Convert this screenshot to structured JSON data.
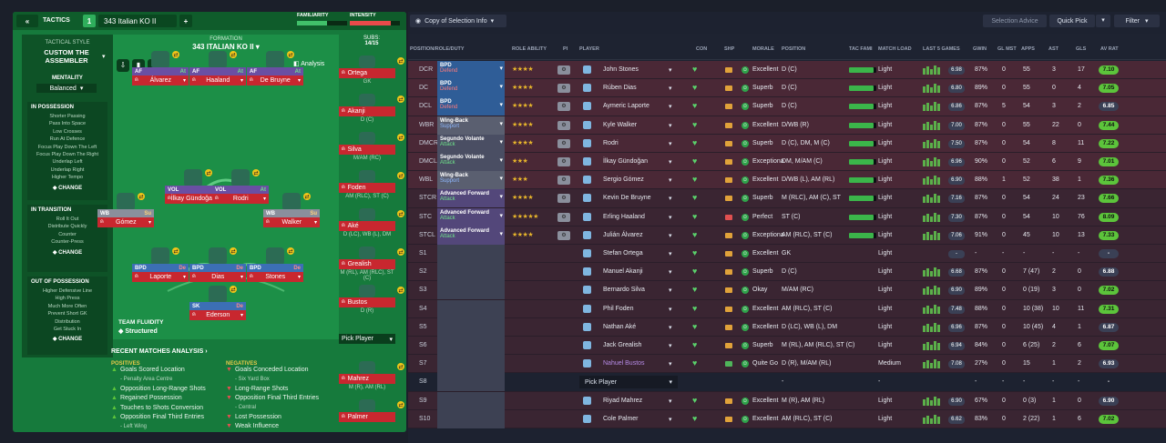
{
  "tactics": {
    "label": "TACTICS",
    "slot": "1",
    "name": "343 Italian KO II",
    "familiarity_label": "FAMILIARITY",
    "intensity_label": "INTENSITY",
    "style_title": "TACTICAL STYLE",
    "style_name": "CUSTOM THE ASSEMBLER",
    "mentality_label": "MENTALITY",
    "mentality_value": "Balanced",
    "in_possession": {
      "title": "IN POSSESSION",
      "items": [
        "Shorter Passing",
        "Pass Into Space",
        "Low Crosses",
        "Run At Defence",
        "Focus Play Down The Left",
        "Focus Play Down The Right",
        "Underlap Left",
        "Underlap Right",
        "Higher Tempo"
      ],
      "change": "CHANGE"
    },
    "in_transition": {
      "title": "IN TRANSITION",
      "items": [
        "Roll It Out",
        "Distribute Quickly",
        "Counter",
        "Counter-Press"
      ],
      "change": "CHANGE"
    },
    "out_of_possession": {
      "title": "OUT OF POSSESSION",
      "items": [
        "Higher Defensive Line",
        "High Press",
        "Much More Often",
        "Prevent Short GK",
        "Distribution",
        "Get Stuck In"
      ],
      "change": "CHANGE"
    },
    "formation_label": "FORMATION",
    "formation_name": "343 ITALIAN KO II",
    "subs_label": "SUBS:",
    "subs_value": "14/15",
    "analysis_btn": "Analysis",
    "team_fluidity_label": "TEAM FLUIDITY",
    "team_fluidity_value": "Structured",
    "pitch_players": [
      {
        "role": "AF",
        "duty": "At",
        "name": "Álvarez"
      },
      {
        "role": "AF",
        "duty": "At",
        "name": "Haaland"
      },
      {
        "role": "AF",
        "duty": "At",
        "name": "De Bruyne"
      },
      {
        "role": "VOL",
        "duty": "At",
        "name": "İlkay Gündoğan"
      },
      {
        "role": "VOL",
        "duty": "At",
        "name": "Rodri"
      },
      {
        "role": "WB",
        "duty": "Su",
        "name": "Gómez"
      },
      {
        "role": "WB",
        "duty": "Su",
        "name": "Walker"
      },
      {
        "role": "BPD",
        "duty": "De",
        "name": "Laporte"
      },
      {
        "role": "BPD",
        "duty": "De",
        "name": "Dias"
      },
      {
        "role": "BPD",
        "duty": "De",
        "name": "Stones"
      },
      {
        "role": "SK",
        "duty": "De",
        "name": "Ederson"
      }
    ],
    "subs": [
      {
        "name": "Ortega",
        "pos": "GK"
      },
      {
        "name": "Akanji",
        "pos": "D (C)"
      },
      {
        "name": "Silva",
        "pos": "M/AM (RC)"
      },
      {
        "name": "Foden",
        "pos": "AM (RLC), ST (C)"
      },
      {
        "name": "Aké",
        "pos": "D (LC), WB (L), DM"
      },
      {
        "name": "Grealish",
        "pos": "M (RL), AM (RLC), ST (C)"
      },
      {
        "name": "Bustos",
        "pos": "D (R)"
      },
      {
        "name": "Pick Player",
        "pos": ""
      },
      {
        "name": "Mahrez",
        "pos": "M (R), AM (RL)"
      },
      {
        "name": "Palmer",
        "pos": ""
      }
    ],
    "analysis": {
      "title": "RECENT MATCHES ANALYSIS",
      "positives_label": "POSITIVES",
      "negatives_label": "NEGATIVES",
      "positives": [
        "Goals Scored Location",
        "- Penalty Area Centre",
        "Opposition Long-Range Shots",
        "Regained Possession",
        "Touches to Shots Conversion",
        "Opposition Final Third Entries",
        "- Left Wing"
      ],
      "negatives": [
        "Goals Conceded Location",
        "- Six Yard Box",
        "Long-Range Shots",
        "Opposition Final Third Entries",
        "- Central",
        "Lost Possession",
        "Weak Influence"
      ]
    }
  },
  "selection": {
    "copy_label": "Copy of Selection Info",
    "advice": "Selection Advice",
    "quick_pick": "Quick Pick",
    "filter": "Filter",
    "columns": [
      "POSITION/ROLE/DUTY",
      "ROLE ABILITY",
      "PI",
      "PLAYER",
      "CON",
      "SHP",
      "MORALE",
      "POSITION",
      "TAC FAMI",
      "MATCH LOAD",
      "LAST 5 GAMES",
      "GWIN",
      "GL MST",
      "APPS",
      "AST",
      "GLS",
      "AV RAT"
    ],
    "rows": [
      {
        "slot": "DCR",
        "role": "BPD",
        "duty": "Defend",
        "stars": "★★★★",
        "player": "John Stones",
        "morale": "Excellent",
        "position": "D (C)",
        "tac": 0.9,
        "load": "Light",
        "form": "6.98",
        "gwin": "87%",
        "glmst": "0",
        "apps": "55",
        "ast": "3",
        "gls": "17",
        "rating": "7.10",
        "rcol": "#5cc43b",
        "shp": "#e0a23a"
      },
      {
        "slot": "DC",
        "role": "BPD",
        "duty": "Defend",
        "stars": "★★★★",
        "player": "Rúben Dias",
        "morale": "Superb",
        "position": "D (C)",
        "tac": 0.9,
        "load": "Light",
        "form": "6.80",
        "gwin": "89%",
        "glmst": "0",
        "apps": "55",
        "ast": "0",
        "gls": "4",
        "rating": "7.05",
        "rcol": "#5cc43b",
        "shp": "#e0a23a"
      },
      {
        "slot": "DCL",
        "role": "BPD",
        "duty": "Defend",
        "stars": "★★★★",
        "player": "Aymeric Laporte",
        "morale": "Superb",
        "position": "D (C)",
        "tac": 0.9,
        "load": "Light",
        "form": "6.86",
        "gwin": "87%",
        "glmst": "5",
        "apps": "54",
        "ast": "3",
        "gls": "2",
        "rating": "6.85",
        "rcol": "#3a4055",
        "shp": "#e0a23a"
      },
      {
        "slot": "WBR",
        "role": "Wing-Back",
        "duty": "Support",
        "stars": "★★★★",
        "player": "Kyle Walker",
        "morale": "Excellent",
        "position": "D/WB (R)",
        "tac": 0.9,
        "load": "Light",
        "form": "7.00",
        "gwin": "87%",
        "glmst": "0",
        "apps": "55",
        "ast": "22",
        "gls": "0",
        "rating": "7.44",
        "rcol": "#5cc43b",
        "shp": "#e0a23a"
      },
      {
        "slot": "DMCR",
        "role": "Segundo Volante",
        "duty": "Attack",
        "stars": "★★★★",
        "player": "Rodri",
        "morale": "Superb",
        "position": "D (C), DM, M (C)",
        "tac": 0.9,
        "load": "Light",
        "form": "7.50",
        "gwin": "87%",
        "glmst": "0",
        "apps": "54",
        "ast": "8",
        "gls": "11",
        "rating": "7.22",
        "rcol": "#5cc43b",
        "shp": "#e0a23a"
      },
      {
        "slot": "DMCL",
        "role": "Segundo Volante",
        "duty": "Attack",
        "stars": "★★★",
        "player": "İlkay Gündoğan",
        "morale": "Exceptiona",
        "position": "DM, M/AM (C)",
        "tac": 0.9,
        "load": "Light",
        "form": "6.96",
        "gwin": "90%",
        "glmst": "0",
        "apps": "52",
        "ast": "6",
        "gls": "9",
        "rating": "7.01",
        "rcol": "#5cc43b",
        "shp": "#e0a23a"
      },
      {
        "slot": "WBL",
        "role": "Wing-Back",
        "duty": "Support",
        "stars": "★★★",
        "player": "Sergio Gómez",
        "morale": "Excellent",
        "position": "D/WB (L), AM (RL)",
        "tac": 0.9,
        "load": "Light",
        "form": "6.90",
        "gwin": "88%",
        "glmst": "1",
        "apps": "52",
        "ast": "38",
        "gls": "1",
        "rating": "7.36",
        "rcol": "#5cc43b",
        "shp": "#e0a23a"
      },
      {
        "slot": "STCR",
        "role": "Advanced Forward",
        "duty": "Attack",
        "stars": "★★★★",
        "player": "Kevin De Bruyne",
        "morale": "Superb",
        "position": "M (RLC), AM (C), ST",
        "tac": 0.9,
        "load": "Light",
        "form": "7.16",
        "gwin": "87%",
        "glmst": "0",
        "apps": "54",
        "ast": "24",
        "gls": "23",
        "rating": "7.66",
        "rcol": "#5cc43b",
        "shp": "#e0a23a"
      },
      {
        "slot": "STC",
        "role": "Advanced Forward",
        "duty": "Attack",
        "stars": "★★★★★",
        "player": "Erling Haaland",
        "morale": "Perfect",
        "position": "ST (C)",
        "tac": 0.9,
        "load": "Light",
        "form": "7.30",
        "gwin": "87%",
        "glmst": "0",
        "apps": "54",
        "ast": "10",
        "gls": "76",
        "rating": "8.09",
        "rcol": "#5cc43b",
        "shp": "#e05050"
      },
      {
        "slot": "STCL",
        "role": "Advanced Forward",
        "duty": "Attack",
        "stars": "★★★★",
        "player": "Julián Álvarez",
        "morale": "Exceptiona",
        "position": "AM (RLC), ST (C)",
        "tac": 0.9,
        "load": "Light",
        "form": "7.06",
        "gwin": "91%",
        "glmst": "0",
        "apps": "45",
        "ast": "10",
        "gls": "13",
        "rating": "7.33",
        "rcol": "#5cc43b",
        "shp": "#e0a23a"
      },
      {
        "slot": "S1",
        "role": "",
        "duty": "",
        "stars": "",
        "player": "Stefan Ortega",
        "morale": "Excellent",
        "position": "GK",
        "tac": 0,
        "load": "Light",
        "form": "-",
        "gwin": "-",
        "glmst": "-",
        "apps": "-",
        "ast": "-",
        "gls": "-",
        "rating": "-",
        "rcol": "#3a4055",
        "shp": "#e0a23a"
      },
      {
        "slot": "S2",
        "role": "",
        "duty": "",
        "stars": "",
        "player": "Manuel Akanji",
        "morale": "Superb",
        "position": "D (C)",
        "tac": 0,
        "load": "Light",
        "form": "6.68",
        "gwin": "87%",
        "glmst": "0",
        "apps": "7 (47)",
        "ast": "2",
        "gls": "0",
        "rating": "6.88",
        "rcol": "#3a4055",
        "shp": "#e0a23a"
      },
      {
        "slot": "S3",
        "role": "",
        "duty": "",
        "stars": "",
        "player": "Bernardo Silva",
        "morale": "Okay",
        "position": "M/AM (RC)",
        "tac": 0,
        "load": "Light",
        "form": "6.90",
        "gwin": "89%",
        "glmst": "0",
        "apps": "0 (19)",
        "ast": "3",
        "gls": "0",
        "rating": "7.02",
        "rcol": "#5cc43b",
        "shp": "#e0a23a"
      },
      {
        "slot": "S4",
        "role": "",
        "duty": "",
        "stars": "",
        "player": "Phil Foden",
        "morale": "Excellent",
        "position": "AM (RLC), ST (C)",
        "tac": 0,
        "load": "Light",
        "form": "7.48",
        "gwin": "88%",
        "glmst": "0",
        "apps": "10 (38)",
        "ast": "10",
        "gls": "11",
        "rating": "7.31",
        "rcol": "#5cc43b",
        "shp": "#e0a23a"
      },
      {
        "slot": "S5",
        "role": "",
        "duty": "",
        "stars": "",
        "player": "Nathan Aké",
        "morale": "Excellent",
        "position": "D (LC), WB (L), DM",
        "tac": 0,
        "load": "Light",
        "form": "6.96",
        "gwin": "87%",
        "glmst": "0",
        "apps": "10 (45)",
        "ast": "4",
        "gls": "1",
        "rating": "6.87",
        "rcol": "#3a4055",
        "shp": "#e0a23a"
      },
      {
        "slot": "S6",
        "role": "",
        "duty": "",
        "stars": "",
        "player": "Jack Grealish",
        "morale": "Superb",
        "position": "M (RL), AM (RLC), ST (C)",
        "tac": 0,
        "load": "Light",
        "form": "6.94",
        "gwin": "84%",
        "glmst": "0",
        "apps": "6 (25)",
        "ast": "2",
        "gls": "6",
        "rating": "7.07",
        "rcol": "#5cc43b",
        "shp": "#e0a23a"
      },
      {
        "slot": "S7",
        "role": "",
        "duty": "",
        "stars": "",
        "player": "Nahuel Bustos",
        "morale": "Quite Go",
        "position": "D (R), M/AM (RL)",
        "tac": 0,
        "load": "Medium",
        "form": "7.08",
        "gwin": "27%",
        "glmst": "0",
        "apps": "15",
        "ast": "1",
        "gls": "2",
        "rating": "6.93",
        "rcol": "#3a4055",
        "shp": "#4fb45a"
      },
      {
        "slot": "S8",
        "role": "",
        "duty": "",
        "stars": "",
        "player": "Pick Player",
        "morale": "-",
        "position": "-",
        "tac": 0,
        "load": "-",
        "form": "",
        "gwin": "-",
        "glmst": "-",
        "apps": "-",
        "ast": "-",
        "gls": "-",
        "rating": "-",
        "rcol": "transparent",
        "shp": "transparent"
      },
      {
        "slot": "S9",
        "role": "",
        "duty": "",
        "stars": "",
        "player": "Riyad Mahrez",
        "morale": "Excellent",
        "position": "M (R), AM (RL)",
        "tac": 0,
        "load": "Light",
        "form": "6.90",
        "gwin": "67%",
        "glmst": "0",
        "apps": "0 (3)",
        "ast": "1",
        "gls": "0",
        "rating": "6.90",
        "rcol": "#3a4055",
        "shp": "#e0a23a"
      },
      {
        "slot": "S10",
        "role": "",
        "duty": "",
        "stars": "",
        "player": "Cole Palmer",
        "morale": "Excellent",
        "position": "AM (RLC), ST (C)",
        "tac": 0,
        "load": "Light",
        "form": "6.62",
        "gwin": "83%",
        "glmst": "0",
        "apps": "2 (22)",
        "ast": "1",
        "gls": "6",
        "rating": "7.02",
        "rcol": "#5cc43b",
        "shp": "#e0a23a"
      }
    ]
  }
}
